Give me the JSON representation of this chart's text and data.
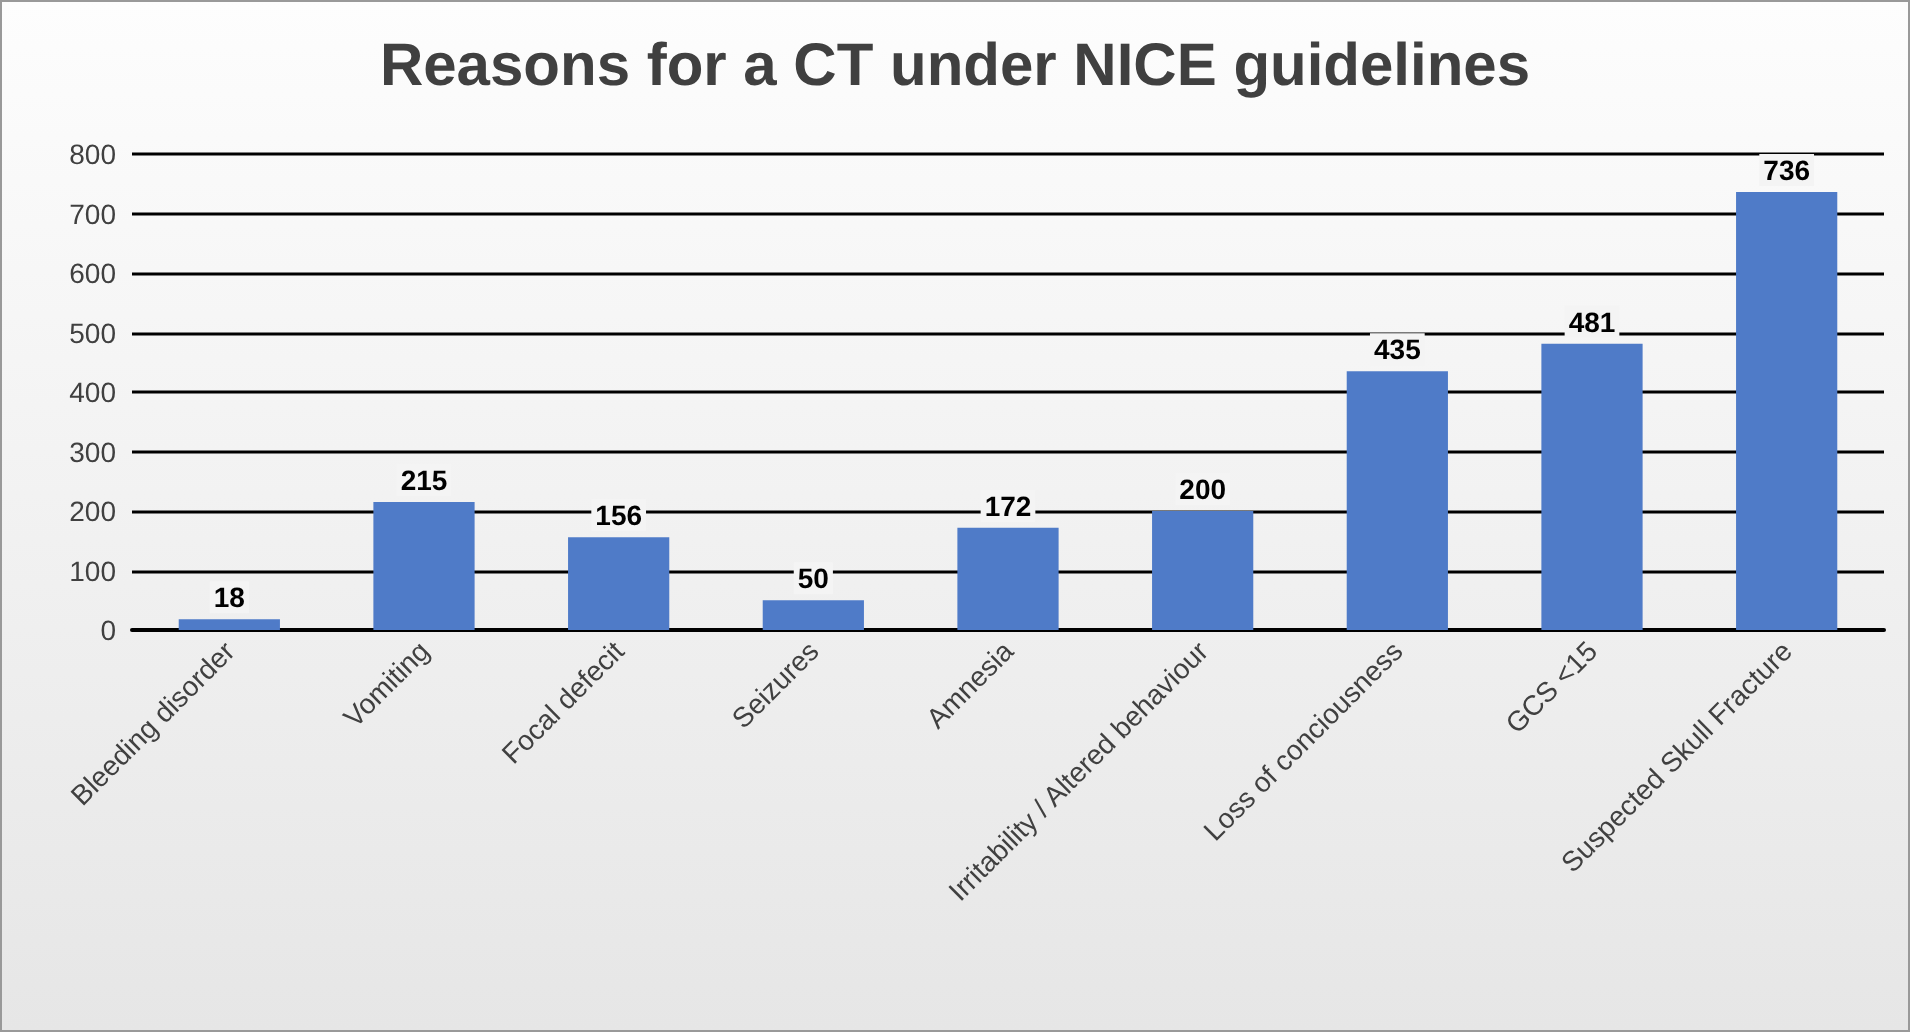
{
  "chart_data": {
    "type": "bar",
    "title": "Reasons for a CT under NICE guidelines",
    "categories": [
      "Bleeding disorder",
      "Vomiting",
      "Focal defecit",
      "Seizures",
      "Amnesia",
      "Irritability / Altered behaviour",
      "Loss of conciousness",
      "GCS <15",
      "Suspected Skull Fracture"
    ],
    "values": [
      18,
      215,
      156,
      50,
      172,
      200,
      435,
      481,
      736
    ],
    "color": "#4f7bc8",
    "ylim": [
      0,
      800
    ],
    "yticks": [
      0,
      100,
      200,
      300,
      400,
      500,
      600,
      700,
      800
    ],
    "grid": "y",
    "data_labels": true
  }
}
